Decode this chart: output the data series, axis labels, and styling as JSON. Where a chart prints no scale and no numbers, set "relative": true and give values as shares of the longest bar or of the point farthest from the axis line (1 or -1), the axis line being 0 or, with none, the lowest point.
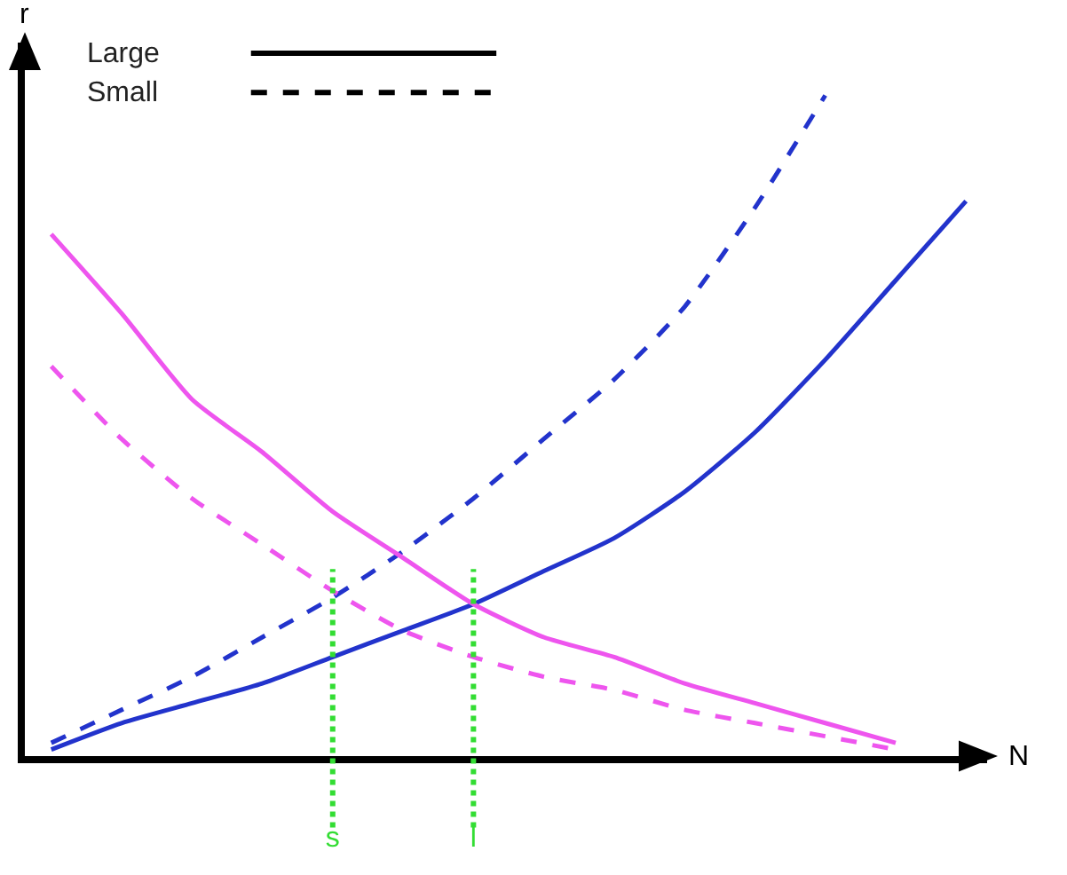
{
  "chart_data": {
    "type": "line",
    "relative": true,
    "xlabel": "N",
    "ylabel": "r",
    "categories": [
      null,
      null,
      null,
      null,
      "s",
      null,
      "l",
      null,
      null,
      null,
      null,
      null,
      null,
      null
    ],
    "series": [
      {
        "color": "#2233cc",
        "line_style": "solid",
        "values": [
          0.01,
          0.05,
          0.08,
          0.11,
          0.15,
          0.19,
          0.23,
          0.28,
          0.33,
          0.4,
          0.49,
          0.6,
          0.72,
          0.84
        ]
      },
      {
        "color": "#2233cc",
        "line_style": "dashed",
        "values": [
          0.02,
          0.07,
          0.12,
          0.18,
          0.24,
          0.31,
          0.39,
          0.48,
          0.57,
          0.68,
          0.83,
          1,
          null,
          null
        ]
      },
      {
        "color": "#ee55ee",
        "line_style": "solid",
        "values": [
          0.79,
          0.67,
          0.54,
          0.46,
          0.37,
          0.3,
          0.23,
          0.18,
          0.15,
          0.11,
          0.08,
          0.05,
          0.02,
          null
        ]
      },
      {
        "color": "#ee55ee",
        "line_style": "dashed",
        "values": [
          0.59,
          0.48,
          0.39,
          0.32,
          0.25,
          0.19,
          0.15,
          0.12,
          0.1,
          0.07,
          0.05,
          0.03,
          0.01,
          null
        ]
      }
    ],
    "annotations": [
      "Large",
      "Small"
    ],
    "ref_lines": [
      {
        "axis": "x",
        "value": "s",
        "color": "#33dd33",
        "line_style": "dotted"
      },
      {
        "axis": "x",
        "value": "l",
        "color": "#33dd33",
        "line_style": "dotted"
      }
    ],
    "tick_labels": "x"
  }
}
